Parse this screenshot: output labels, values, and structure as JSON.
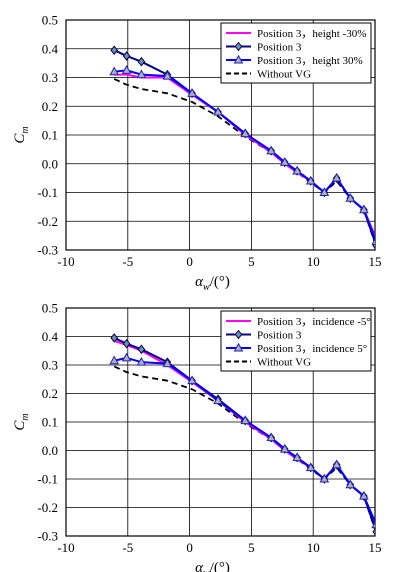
{
  "chart_data": [
    {
      "type": "line",
      "xlabel_main": "α",
      "xlabel_sub": "w",
      "xlabel_unit": "/(°)",
      "ylabel_main": "C",
      "ylabel_sub": "m",
      "xlim": [
        -10,
        15
      ],
      "ylim": [
        -0.3,
        0.5
      ],
      "xticks": [
        -10,
        -5,
        0,
        5,
        10,
        15
      ],
      "yticks": [
        -0.3,
        -0.2,
        -0.1,
        0.0,
        0.1,
        0.2,
        0.3,
        0.4,
        0.5
      ],
      "ytick_labels": [
        "-0.3",
        "-0.2",
        "-0.1",
        "0.0",
        "0.1",
        "0.2",
        "0.3",
        "0.4",
        "0.5"
      ],
      "grid": true,
      "legend_position": "top-right",
      "series": [
        {
          "name": "Position 3，height -30%",
          "color": "#ff00ff",
          "marker": "none",
          "dash": "solid",
          "x": [
            -6.1,
            -5.1,
            -3.9,
            -1.8,
            0.2,
            2.3,
            4.5,
            6.6,
            7.7,
            8.7,
            9.8,
            10.9,
            11.9,
            13.0,
            14.1,
            15.1
          ],
          "y": [
            0.31,
            0.31,
            0.3,
            0.3,
            0.24,
            0.18,
            0.1,
            0.04,
            0.0,
            -0.03,
            -0.06,
            -0.1,
            -0.05,
            -0.12,
            -0.16,
            -0.26
          ]
        },
        {
          "name": "Position 3",
          "color": "#000080",
          "marker": "diamond",
          "dash": "solid",
          "x": [
            -6.1,
            -5.1,
            -3.9,
            -1.8,
            0.2,
            2.3,
            4.5,
            6.6,
            7.7,
            8.7,
            9.8,
            10.9,
            11.9,
            13.0,
            14.1,
            15.1
          ],
          "y": [
            0.395,
            0.375,
            0.355,
            0.31,
            0.245,
            0.18,
            0.105,
            0.045,
            0.005,
            -0.025,
            -0.06,
            -0.1,
            -0.05,
            -0.12,
            -0.16,
            -0.285
          ]
        },
        {
          "name": "Position 3，height 30%",
          "color": "#0000ff",
          "marker": "triangle",
          "dash": "solid",
          "x": [
            -6.1,
            -5.1,
            -3.9,
            -1.8,
            0.2,
            2.3,
            4.5,
            6.6,
            7.7,
            8.7,
            9.8,
            10.9,
            11.9,
            13.0,
            14.1,
            15.1
          ],
          "y": [
            0.32,
            0.325,
            0.31,
            0.305,
            0.245,
            0.18,
            0.105,
            0.045,
            0.005,
            -0.025,
            -0.06,
            -0.1,
            -0.05,
            -0.12,
            -0.16,
            -0.27
          ]
        },
        {
          "name": "Without VG",
          "color": "#000000",
          "marker": "none",
          "dash": "dashed",
          "x": [
            -6.1,
            -5.1,
            -3.9,
            -1.8,
            0.2,
            2.3,
            4.5,
            6.6,
            7.7,
            8.7,
            9.8,
            10.9,
            11.9,
            13.0,
            14.1,
            15.1
          ],
          "y": [
            0.295,
            0.275,
            0.26,
            0.245,
            0.215,
            0.165,
            0.095,
            0.04,
            0.0,
            -0.03,
            -0.065,
            -0.1,
            -0.06,
            -0.12,
            -0.16,
            -0.29
          ]
        }
      ]
    },
    {
      "type": "line",
      "xlabel_main": "α",
      "xlabel_sub": "w",
      "xlabel_unit": "/(°)",
      "ylabel_main": "C",
      "ylabel_sub": "m",
      "xlim": [
        -10,
        15
      ],
      "ylim": [
        -0.3,
        0.5
      ],
      "xticks": [
        -10,
        -5,
        0,
        5,
        10,
        15
      ],
      "yticks": [
        -0.3,
        -0.2,
        -0.1,
        0.0,
        0.1,
        0.2,
        0.3,
        0.4,
        0.5
      ],
      "ytick_labels": [
        "-0.3",
        "-0.2",
        "-0.1",
        "0.0",
        "0.1",
        "0.2",
        "0.3",
        "0.4",
        "0.5"
      ],
      "grid": true,
      "legend_position": "top-right",
      "series": [
        {
          "name": "Position 3，incidence -5°",
          "color": "#ff00ff",
          "marker": "none",
          "dash": "solid",
          "x": [
            -6.1,
            -5.1,
            -3.9,
            -1.8,
            0.2,
            2.3,
            4.5,
            6.6,
            7.7,
            8.7,
            9.8,
            10.9,
            11.9,
            13.0,
            14.1,
            15.1
          ],
          "y": [
            0.385,
            0.37,
            0.35,
            0.3,
            0.24,
            0.175,
            0.1,
            0.04,
            0.0,
            -0.03,
            -0.06,
            -0.1,
            -0.05,
            -0.12,
            -0.16,
            -0.28
          ]
        },
        {
          "name": "Position 3",
          "color": "#000080",
          "marker": "diamond",
          "dash": "solid",
          "x": [
            -6.1,
            -5.1,
            -3.9,
            -1.8,
            0.2,
            2.3,
            4.5,
            6.6,
            7.7,
            8.7,
            9.8,
            10.9,
            11.9,
            13.0,
            14.1,
            15.1
          ],
          "y": [
            0.395,
            0.375,
            0.355,
            0.31,
            0.245,
            0.18,
            0.105,
            0.045,
            0.005,
            -0.025,
            -0.06,
            -0.1,
            -0.05,
            -0.12,
            -0.16,
            -0.285
          ]
        },
        {
          "name": "Position 3，incidence 5°",
          "color": "#0000ff",
          "marker": "triangle",
          "dash": "solid",
          "x": [
            -6.1,
            -5.1,
            -3.9,
            -1.8,
            0.2,
            2.3,
            4.5,
            6.6,
            7.7,
            8.7,
            9.8,
            10.9,
            11.9,
            13.0,
            14.1,
            15.1
          ],
          "y": [
            0.315,
            0.325,
            0.31,
            0.305,
            0.245,
            0.175,
            0.105,
            0.045,
            0.005,
            -0.025,
            -0.06,
            -0.1,
            -0.05,
            -0.12,
            -0.16,
            -0.26
          ]
        },
        {
          "name": "Without VG",
          "color": "#000000",
          "marker": "none",
          "dash": "dashed",
          "x": [
            -6.1,
            -5.1,
            -3.9,
            -1.8,
            0.2,
            2.3,
            4.5,
            6.6,
            7.7,
            8.7,
            9.8,
            10.9,
            11.9,
            13.0,
            14.1,
            15.1
          ],
          "y": [
            0.295,
            0.275,
            0.26,
            0.245,
            0.215,
            0.165,
            0.095,
            0.04,
            0.0,
            -0.03,
            -0.065,
            -0.1,
            -0.06,
            -0.12,
            -0.16,
            -0.29
          ]
        }
      ]
    }
  ]
}
